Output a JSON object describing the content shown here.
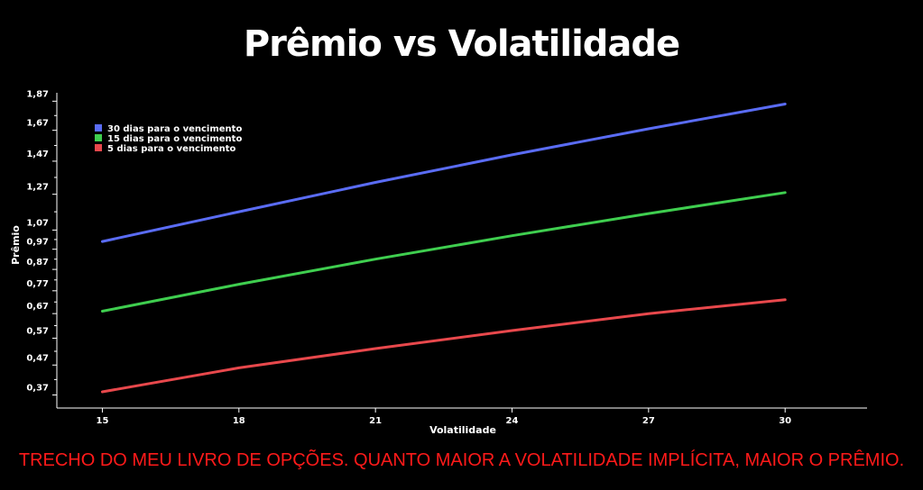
{
  "chart_data": {
    "type": "line",
    "title": "Prêmio vs Volatilidade",
    "xlabel": "Volatilidade",
    "ylabel": "Prêmio",
    "x_ticks": [
      15,
      18,
      21,
      24,
      27,
      30
    ],
    "y_ticks": [
      0.37,
      0.47,
      0.57,
      0.67,
      0.77,
      0.87,
      0.97,
      1.07,
      1.27,
      1.47,
      1.67,
      1.87
    ],
    "y_tick_labels": [
      "0,37",
      "0,47",
      "0,57",
      "0,67",
      "0,77",
      "0,87",
      "0,97",
      "1,07",
      "1,27",
      "1,47",
      "1,67",
      "1,87"
    ],
    "y_scale": "sqrt",
    "xlim": [
      14,
      31.8
    ],
    "ylim": [
      0.33,
      1.93
    ],
    "legend_position": "top-left",
    "grid": false,
    "series": [
      {
        "name": "30 dias para o vencimento",
        "color": "#5a6cf5",
        "x": [
          15,
          18,
          21,
          24,
          27,
          30
        ],
        "y": [
          1.01,
          1.17,
          1.34,
          1.51,
          1.68,
          1.85
        ]
      },
      {
        "name": "15 dias para o vencimento",
        "color": "#3fce4f",
        "x": [
          15,
          18,
          21,
          24,
          27,
          30
        ],
        "y": [
          0.68,
          0.8,
          0.92,
          1.04,
          1.16,
          1.28
        ]
      },
      {
        "name": "5 dias para o vencimento",
        "color": "#e8484c",
        "x": [
          15,
          18,
          21,
          24,
          27,
          30
        ],
        "y": [
          0.38,
          0.46,
          0.53,
          0.6,
          0.67,
          0.73
        ]
      }
    ]
  },
  "caption": "TRECHO DO MEU LIVRO DE OPÇÕES. QUANTO MAIOR A VOLATILIDADE IMPLÍCITA, MAIOR O PRÊMIO."
}
